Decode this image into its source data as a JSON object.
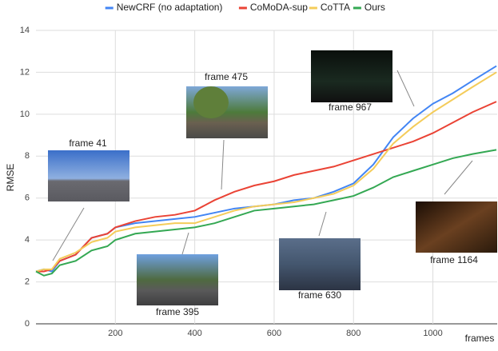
{
  "chart_data": {
    "type": "line",
    "x_label": "frames",
    "y_label": "RMSE",
    "x": [
      0,
      20,
      40,
      60,
      100,
      140,
      180,
      200,
      250,
      300,
      350,
      400,
      450,
      500,
      550,
      600,
      650,
      700,
      750,
      800,
      850,
      900,
      950,
      1000,
      1050,
      1100,
      1160
    ],
    "series": [
      {
        "name": "NewCRF (no adaptation)",
        "color": "#4285f4",
        "values": [
          2.5,
          2.6,
          2.5,
          3.0,
          3.3,
          4.1,
          4.3,
          4.6,
          4.8,
          4.9,
          5.0,
          5.1,
          5.3,
          5.5,
          5.6,
          5.7,
          5.9,
          6.0,
          6.3,
          6.7,
          7.6,
          8.9,
          9.8,
          10.5,
          11.0,
          11.6,
          12.3
        ]
      },
      {
        "name": "CoMoDA-sup",
        "color": "#ea4335",
        "values": [
          2.5,
          2.5,
          2.6,
          3.0,
          3.3,
          4.1,
          4.3,
          4.6,
          4.9,
          5.1,
          5.2,
          5.4,
          5.9,
          6.3,
          6.6,
          6.8,
          7.1,
          7.3,
          7.5,
          7.8,
          8.1,
          8.4,
          8.7,
          9.1,
          9.6,
          10.1,
          10.6
        ]
      },
      {
        "name": "CoTTA",
        "color": "#f4cc5a",
        "values": [
          2.5,
          2.6,
          2.6,
          3.1,
          3.4,
          3.9,
          4.1,
          4.4,
          4.6,
          4.7,
          4.8,
          4.8,
          5.1,
          5.4,
          5.6,
          5.7,
          5.8,
          6.0,
          6.2,
          6.6,
          7.4,
          8.6,
          9.4,
          10.1,
          10.7,
          11.3,
          12.0
        ]
      },
      {
        "name": "Ours",
        "color": "#34a853",
        "values": [
          2.5,
          2.3,
          2.4,
          2.8,
          3.0,
          3.5,
          3.7,
          4.0,
          4.3,
          4.4,
          4.5,
          4.6,
          4.8,
          5.1,
          5.4,
          5.5,
          5.6,
          5.7,
          5.9,
          6.1,
          6.5,
          7.0,
          7.3,
          7.6,
          7.9,
          8.1,
          8.3
        ]
      }
    ],
    "xlim": [
      0,
      1162
    ],
    "ylim": [
      0,
      14
    ],
    "xticks": [
      200,
      400,
      600,
      800,
      1000
    ],
    "yticks": [
      0,
      2,
      4,
      6,
      8,
      10,
      12,
      14
    ],
    "grid": true,
    "annotations": [
      "frame 41",
      "frame 475",
      "frame 967",
      "frame 395",
      "frame 630",
      "frame 1164"
    ]
  }
}
